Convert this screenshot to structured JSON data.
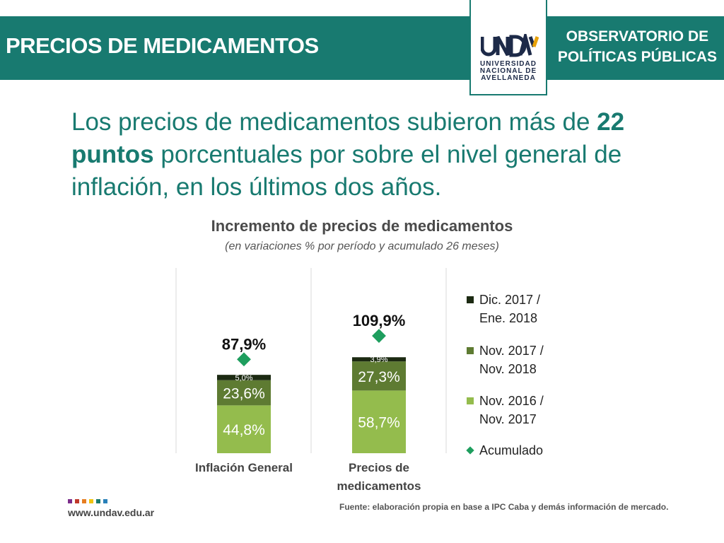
{
  "header": {
    "title": "PRECIOS DE MEDICAMENTOS",
    "observatorio_line1": "OBSERVATORIO DE",
    "observatorio_line2": "POLÍTICAS PÚBLICAS"
  },
  "logo": {
    "name": "UNDAV",
    "line1": "UNIVERSIDAD",
    "line2": "NACIONAL DE",
    "line3": "AVELLANEDA"
  },
  "headline": {
    "part1": "Los precios de medicamentos subieron más de ",
    "bold": "22 puntos",
    "part2": " porcentuales por sobre el nivel general de inflación, en los últimos dos años."
  },
  "chart_data": {
    "type": "bar",
    "stacked": true,
    "title": "Incremento de precios de medicamentos",
    "subtitle": "(en variaciones % por período y acumulado 26 meses)",
    "categories": [
      [
        "Inflación General"
      ],
      [
        "Precios de",
        "medicamentos"
      ]
    ],
    "series": [
      {
        "name_lines": [
          "Nov. 2016 /",
          "Nov. 2017"
        ],
        "color": "#94bc4d",
        "values": [
          44.8,
          58.7
        ],
        "labels": [
          "44,8%",
          "58,7%"
        ]
      },
      {
        "name_lines": [
          "Nov. 2017 /",
          "Nov. 2018"
        ],
        "color": "#5e7b32",
        "values": [
          23.6,
          27.3
        ],
        "labels": [
          "23,6%",
          "27,3%"
        ]
      },
      {
        "name_lines": [
          "Dic. 2017 /",
          "Ene. 2018"
        ],
        "color": "#1c2a12",
        "values": [
          5.0,
          3.9
        ],
        "labels": [
          "5,0%",
          "3,9%"
        ]
      }
    ],
    "cumulative": {
      "name": "Acumulado",
      "color": "#1e9e5e",
      "values": [
        87.9,
        109.9
      ],
      "labels": [
        "87,9%",
        "109,9%"
      ]
    },
    "ylim": [
      0,
      120
    ]
  },
  "source": "Fuente: elaboración propia en base a IPC Caba y demás información de mercado.",
  "website": "www.undav.edu.ar",
  "colors": {
    "primary": "#187a70",
    "dots": [
      "#7b2d8b",
      "#c0392b",
      "#e67e22",
      "#f1c40f",
      "#187a70",
      "#2980b9"
    ]
  }
}
